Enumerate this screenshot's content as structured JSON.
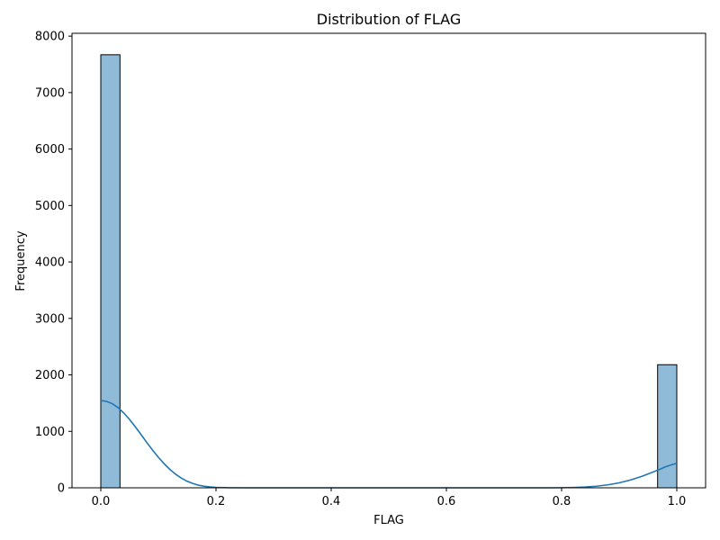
{
  "chart_data": {
    "type": "bar",
    "subtype": "histogram-with-kde",
    "title": "Distribution of FLAG",
    "xlabel": "FLAG",
    "ylabel": "Frequency",
    "xlim": [
      -0.05,
      1.05
    ],
    "ylim": [
      0,
      8050
    ],
    "x_ticks": [
      0.0,
      0.2,
      0.4,
      0.6,
      0.8,
      1.0
    ],
    "x_tick_labels": [
      "0.0",
      "0.2",
      "0.4",
      "0.6",
      "0.8",
      "1.0"
    ],
    "y_ticks": [
      0,
      1000,
      2000,
      3000,
      4000,
      5000,
      6000,
      7000,
      8000
    ],
    "y_tick_labels": [
      "0",
      "1000",
      "2000",
      "3000",
      "4000",
      "5000",
      "6000",
      "7000",
      "8000"
    ],
    "grid": false,
    "legend": "none",
    "series": [
      {
        "kind": "histogram",
        "color": "#1f77b4",
        "fill_opacity": 0.5,
        "edge_color": "#000000",
        "bins": [
          {
            "x0": 0.0,
            "x1": 0.0333,
            "count": 7670
          },
          {
            "x0": 0.9667,
            "x1": 1.0,
            "count": 2180
          }
        ]
      },
      {
        "kind": "kde",
        "color": "#1f77b4",
        "points": [
          [
            0.0,
            1545
          ],
          [
            0.01,
            1530
          ],
          [
            0.02,
            1490
          ],
          [
            0.03,
            1420
          ],
          [
            0.04,
            1325
          ],
          [
            0.05,
            1210
          ],
          [
            0.06,
            1080
          ],
          [
            0.07,
            940
          ],
          [
            0.08,
            800
          ],
          [
            0.09,
            665
          ],
          [
            0.1,
            540
          ],
          [
            0.11,
            425
          ],
          [
            0.12,
            325
          ],
          [
            0.13,
            240
          ],
          [
            0.14,
            170
          ],
          [
            0.15,
            115
          ],
          [
            0.16,
            75
          ],
          [
            0.17,
            45
          ],
          [
            0.18,
            27
          ],
          [
            0.19,
            15
          ],
          [
            0.2,
            8
          ],
          [
            0.22,
            2
          ],
          [
            0.25,
            0
          ],
          [
            0.3,
            0
          ],
          [
            0.4,
            0
          ],
          [
            0.5,
            0
          ],
          [
            0.6,
            0
          ],
          [
            0.7,
            0
          ],
          [
            0.78,
            0
          ],
          [
            0.8,
            2
          ],
          [
            0.82,
            6
          ],
          [
            0.84,
            14
          ],
          [
            0.86,
            28
          ],
          [
            0.88,
            52
          ],
          [
            0.9,
            88
          ],
          [
            0.92,
            140
          ],
          [
            0.94,
            205
          ],
          [
            0.96,
            285
          ],
          [
            0.97,
            325
          ],
          [
            0.98,
            370
          ],
          [
            0.99,
            405
          ],
          [
            1.0,
            435
          ]
        ]
      }
    ]
  }
}
